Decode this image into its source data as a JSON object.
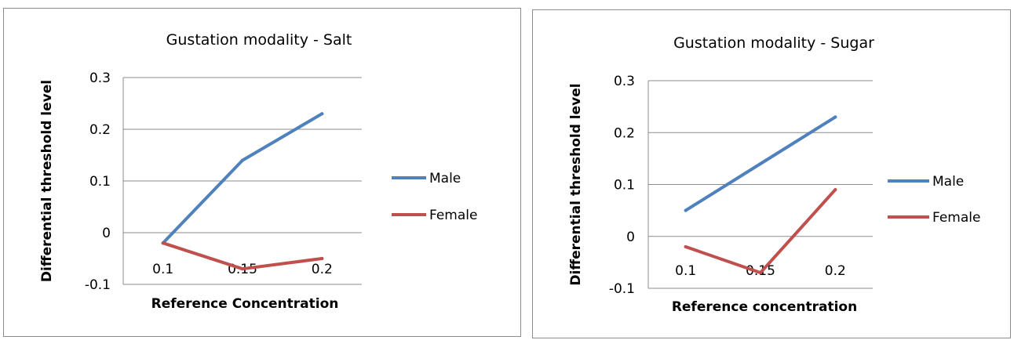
{
  "colors": {
    "male": "#4f81bd",
    "female": "#c0504d",
    "grid": "#8c8c8c",
    "frame": "#8c8c8c"
  },
  "chart_data": [
    {
      "type": "line",
      "title": "Gustation modality - Salt",
      "xlabel": "Reference Concentration",
      "ylabel": "Differential threshold level",
      "categories": [
        "0.1",
        "0.15",
        "0.2"
      ],
      "ylim": [
        -0.1,
        0.3
      ],
      "yticks": [
        "0.3",
        "0.2",
        "0.1",
        "0",
        "-0.1"
      ],
      "grid": true,
      "legend_position": "right",
      "series": [
        {
          "name": "Male",
          "values": [
            -0.02,
            0.14,
            0.23
          ]
        },
        {
          "name": "Female",
          "values": [
            -0.02,
            -0.07,
            -0.05
          ]
        }
      ]
    },
    {
      "type": "line",
      "title": "Gustation modality - Sugar",
      "xlabel": "Reference concentration",
      "ylabel": "Differential threshold level",
      "categories": [
        "0.1",
        "0.15",
        "0.2"
      ],
      "ylim": [
        -0.1,
        0.3
      ],
      "yticks": [
        "0.3",
        "0.2",
        "0.1",
        "0",
        "-0.1"
      ],
      "grid": true,
      "legend_position": "right",
      "series": [
        {
          "name": "Male",
          "values": [
            0.05,
            0.14,
            0.23
          ]
        },
        {
          "name": "Female",
          "values": [
            -0.02,
            -0.07,
            0.09
          ]
        }
      ]
    }
  ]
}
